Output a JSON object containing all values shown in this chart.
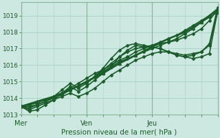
{
  "xlabel": "Pression niveau de la mer( hPa )",
  "bg_color": "#cce8e0",
  "grid_color": "#aad0c8",
  "line_color": "#1a5c2a",
  "spine_color": "#88b898",
  "xlim": [
    0,
    72
  ],
  "ylim": [
    1013.0,
    1019.8
  ],
  "yticks": [
    1013,
    1014,
    1015,
    1016,
    1017,
    1018,
    1019
  ],
  "xtick_positions": [
    0,
    24,
    48
  ],
  "xtick_labels": [
    "Mer",
    "Ven",
    "Jeu"
  ],
  "lines": [
    {
      "x": [
        0,
        6,
        12,
        18,
        24,
        30,
        36,
        42,
        48,
        54,
        60,
        66,
        72
      ],
      "y": [
        1013.5,
        1013.8,
        1014.1,
        1014.5,
        1015.0,
        1015.5,
        1016.1,
        1016.6,
        1017.1,
        1017.6,
        1018.0,
        1018.6,
        1019.4
      ],
      "marker": "^",
      "markersize": 3.5,
      "linewidth": 1.8
    },
    {
      "x": [
        0,
        3,
        6,
        9,
        12,
        15,
        18,
        21,
        24,
        27,
        30,
        33,
        36,
        39,
        42,
        45,
        48,
        51,
        54,
        57,
        60,
        63,
        66,
        69,
        72
      ],
      "y": [
        1013.5,
        1013.6,
        1013.7,
        1013.9,
        1014.1,
        1014.3,
        1014.6,
        1014.9,
        1015.2,
        1015.5,
        1015.7,
        1016.0,
        1016.3,
        1016.5,
        1016.8,
        1017.0,
        1017.2,
        1017.4,
        1017.6,
        1017.8,
        1018.1,
        1018.4,
        1018.7,
        1019.0,
        1019.3
      ],
      "marker": "D",
      "markersize": 2.5,
      "linewidth": 1.2
    },
    {
      "x": [
        0,
        3,
        6,
        9,
        12,
        15,
        18,
        21,
        24,
        27,
        30,
        33,
        36,
        39,
        42,
        45,
        48,
        51,
        54,
        57,
        60,
        63,
        66,
        69,
        72
      ],
      "y": [
        1013.5,
        1013.5,
        1013.6,
        1013.8,
        1014.0,
        1014.2,
        1014.5,
        1014.7,
        1015.0,
        1015.3,
        1015.6,
        1015.9,
        1016.2,
        1016.4,
        1016.6,
        1016.8,
        1017.0,
        1017.2,
        1017.4,
        1017.6,
        1017.9,
        1018.2,
        1018.6,
        1018.9,
        1019.2
      ],
      "marker": "D",
      "markersize": 2.5,
      "linewidth": 1.2
    },
    {
      "x": [
        0,
        3,
        6,
        9,
        12,
        15,
        18,
        21,
        24,
        27,
        30,
        33,
        36,
        39,
        42,
        45,
        48,
        51,
        54,
        57,
        60,
        63,
        66,
        69,
        72
      ],
      "y": [
        1013.5,
        1013.3,
        1013.5,
        1013.7,
        1013.9,
        1014.1,
        1014.3,
        1014.1,
        1014.3,
        1014.6,
        1015.0,
        1015.4,
        1015.7,
        1016.0,
        1016.3,
        1016.5,
        1016.7,
        1016.8,
        1016.8,
        1016.7,
        1016.6,
        1016.7,
        1016.8,
        1017.2,
        1019.2
      ],
      "marker": "D",
      "markersize": 2.5,
      "linewidth": 1.2
    },
    {
      "x": [
        0,
        3,
        6,
        9,
        12,
        15,
        18,
        21,
        24,
        27,
        30,
        33,
        36,
        39,
        42,
        45,
        48,
        51,
        54,
        57,
        60,
        63,
        66,
        69,
        72
      ],
      "y": [
        1013.5,
        1013.2,
        1013.3,
        1013.6,
        1013.9,
        1014.3,
        1014.7,
        1014.4,
        1014.7,
        1015.1,
        1015.5,
        1015.9,
        1016.5,
        1016.9,
        1017.2,
        1017.1,
        1017.1,
        1017.0,
        1016.8,
        1016.6,
        1016.5,
        1016.6,
        1016.8,
        1017.3,
        1019.5
      ],
      "marker": "D",
      "markersize": 2.5,
      "linewidth": 1.2
    },
    {
      "x": [
        0,
        3,
        6,
        9,
        12,
        15,
        18,
        21,
        24,
        27,
        30,
        33,
        36,
        39,
        42,
        45,
        48,
        51,
        54,
        57,
        60,
        63,
        66,
        69,
        72
      ],
      "y": [
        1013.5,
        1013.4,
        1013.6,
        1013.8,
        1014.1,
        1014.5,
        1014.9,
        1014.6,
        1014.9,
        1015.3,
        1015.8,
        1016.4,
        1016.9,
        1017.2,
        1017.3,
        1017.2,
        1017.1,
        1017.0,
        1016.8,
        1016.6,
        1016.5,
        1016.4,
        1016.5,
        1016.7,
        1019.3
      ],
      "marker": "D",
      "markersize": 2.5,
      "linewidth": 1.2
    },
    {
      "x": [
        24,
        27,
        30,
        33,
        36,
        39,
        42,
        45,
        48,
        51,
        54,
        57,
        60,
        63,
        66,
        69,
        72
      ],
      "y": [
        1014.9,
        1015.3,
        1015.7,
        1016.1,
        1016.5,
        1016.8,
        1017.0,
        1017.1,
        1017.2,
        1017.3,
        1017.4,
        1017.5,
        1017.7,
        1017.9,
        1018.2,
        1018.7,
        1019.4
      ],
      "marker": "D",
      "markersize": 2.5,
      "linewidth": 1.2
    }
  ]
}
